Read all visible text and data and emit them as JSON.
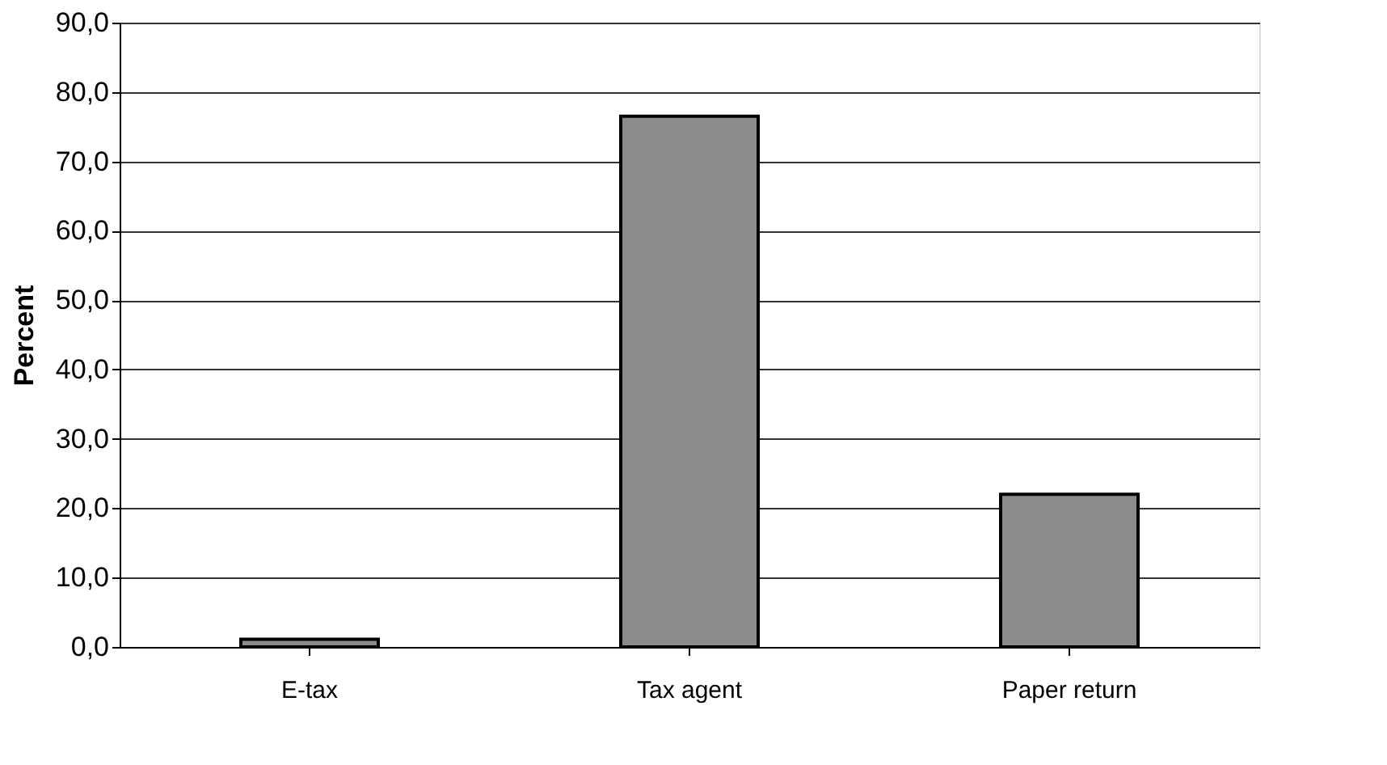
{
  "chart_data": {
    "type": "bar",
    "ylabel": "Percent",
    "categories": [
      "E-tax",
      "Tax agent",
      "Paper return"
    ],
    "values": [
      1.1,
      76.5,
      22.0
    ],
    "color": "#8c8c8c",
    "ylim": [
      0,
      90
    ],
    "yticks": [
      {
        "value": 0,
        "label": "0,0"
      },
      {
        "value": 10,
        "label": "10,0"
      },
      {
        "value": 20,
        "label": "20,0"
      },
      {
        "value": 30,
        "label": "30,0"
      },
      {
        "value": 40,
        "label": "40,0"
      },
      {
        "value": 50,
        "label": "50,0"
      },
      {
        "value": 60,
        "label": "60,0"
      },
      {
        "value": 70,
        "label": "70,0"
      },
      {
        "value": 80,
        "label": "80,0"
      },
      {
        "value": 90,
        "label": "90,0"
      }
    ],
    "grid": "y"
  }
}
